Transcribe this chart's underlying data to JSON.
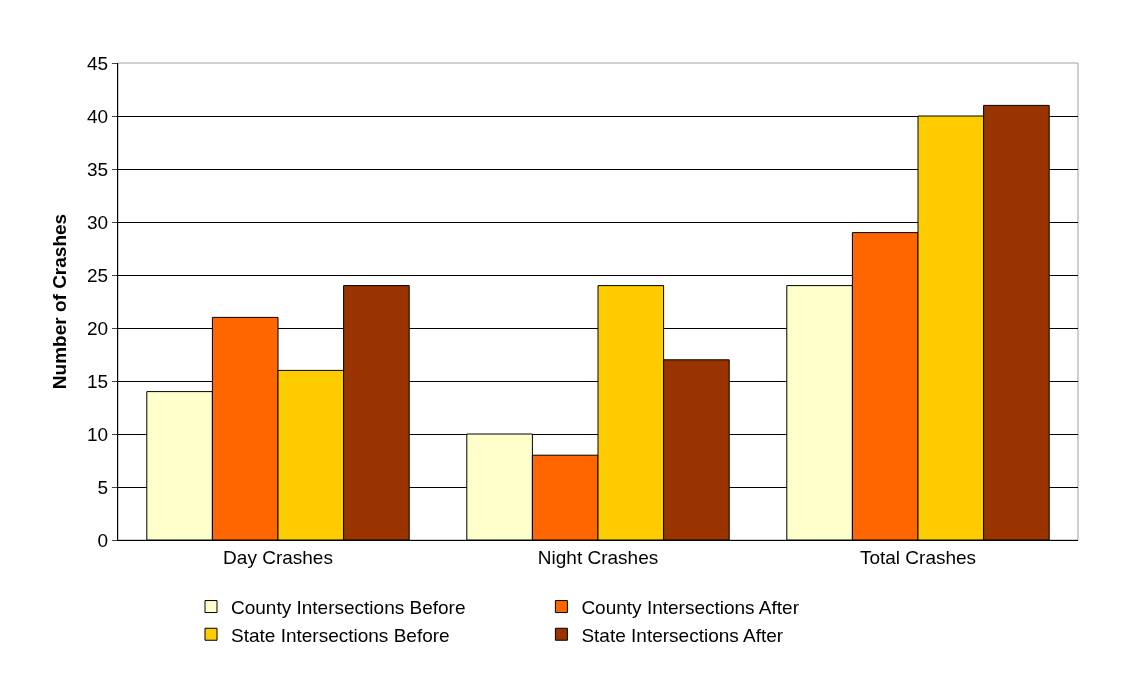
{
  "chart_data": {
    "type": "bar",
    "ylabel": "Number of Crashes",
    "categories": [
      "Day Crashes",
      "Night Crashes",
      "Total Crashes"
    ],
    "series": [
      {
        "name": "County Intersections Before",
        "color": "#ffffcc",
        "values": [
          14,
          10,
          24
        ]
      },
      {
        "name": "County Intersections After",
        "color": "#ff6600",
        "values": [
          21,
          8,
          29
        ]
      },
      {
        "name": "State Intersections Before",
        "color": "#ffcc00",
        "values": [
          16,
          24,
          40
        ]
      },
      {
        "name": "State Intersections After",
        "color": "#993300",
        "values": [
          24,
          17,
          41
        ]
      }
    ],
    "ylim": [
      0,
      45
    ],
    "yticks": [
      0,
      5,
      10,
      15,
      20,
      25,
      30,
      35,
      40,
      45
    ],
    "grid": "y",
    "legend": "bottom"
  }
}
